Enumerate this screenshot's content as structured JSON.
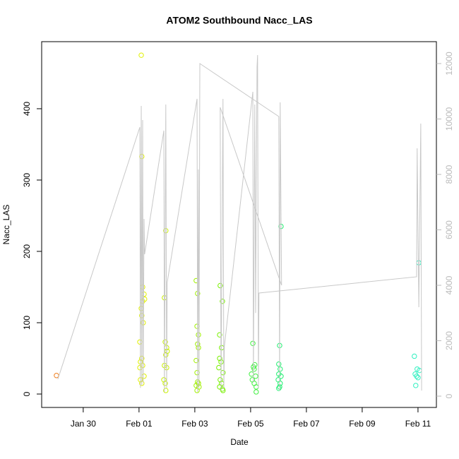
{
  "chart_data": {
    "type": "scatter",
    "title": "ATOM2 Southbound Nacc_LAS",
    "x_label": "Date",
    "y_label": "Nacc_LAS",
    "xlim": [
      28.51,
      42.66
    ],
    "xticks": [
      {
        "value": 30,
        "label": "Jan 30"
      },
      {
        "value": 32,
        "label": "Feb 01"
      },
      {
        "value": 34,
        "label": "Feb 03"
      },
      {
        "value": 36,
        "label": "Feb 05"
      },
      {
        "value": 38,
        "label": "Feb 07"
      },
      {
        "value": 40,
        "label": "Feb 09"
      },
      {
        "value": 42,
        "label": "Feb 11"
      }
    ],
    "ylim": [
      -18.8,
      494
    ],
    "yticks": [
      0,
      100,
      200,
      300,
      400
    ],
    "y2lim": [
      -408,
      12790
    ],
    "y2ticks": [
      0,
      2000,
      4000,
      6000,
      8000,
      10000,
      12000
    ],
    "y2_color": "#bbbbbb",
    "series": [
      {
        "color": "#f08020",
        "x": [
          29.04
        ],
        "values": [
          26
        ]
      },
      {
        "color": "#e0f000",
        "x": [
          32.08,
          32.1,
          32.13,
          32.18,
          32.13,
          32.2,
          32.08,
          32.1,
          32.15,
          32.03,
          32.1,
          32.05,
          32.13,
          32.03,
          32.18,
          32.05,
          32.1
        ],
        "values": [
          475,
          333,
          150,
          140,
          130,
          133,
          120,
          110,
          100,
          73,
          50,
          45,
          40,
          37,
          25,
          20,
          15
        ]
      },
      {
        "color": "#c8f000",
        "x": [
          32.96,
          32.91,
          32.94,
          32.99,
          33.01,
          32.96,
          32.91,
          32.99,
          32.89,
          32.94,
          32.96
        ],
        "values": [
          229,
          135,
          73,
          65,
          60,
          55,
          40,
          37,
          20,
          15,
          5
        ]
      },
      {
        "color": "#a0f000",
        "x": [
          34.05,
          34.1,
          34.08,
          34.13,
          34.1,
          34.13,
          34.05,
          34.08,
          34.1,
          34.13,
          34.05,
          34.15,
          34.08
        ],
        "values": [
          159,
          141,
          95,
          83,
          70,
          65,
          47,
          30,
          17,
          15,
          12,
          10,
          5
        ]
      },
      {
        "color": "#78f000",
        "x": [
          34.91,
          34.99,
          34.89,
          34.96,
          34.89,
          34.94,
          34.86,
          35.01,
          34.91,
          34.96,
          34.89,
          34.99,
          35.01
        ],
        "values": [
          152,
          130,
          83,
          65,
          50,
          45,
          37,
          30,
          20,
          15,
          10,
          7,
          5
        ]
      },
      {
        "color": "#40f040",
        "x": [
          36.08,
          36.15,
          36.1,
          36.13,
          36.03,
          36.18,
          36.06,
          36.13,
          36.2,
          36.2
        ],
        "values": [
          71,
          41,
          38,
          35,
          28,
          25,
          20,
          15,
          10,
          3
        ]
      },
      {
        "color": "#20f070",
        "x": [
          37.09,
          37.04,
          37.01,
          37.06,
          37.01,
          37.09,
          36.99,
          37.06,
          37.04,
          37.01
        ],
        "values": [
          235,
          68,
          42,
          35,
          28,
          25,
          20,
          15,
          10,
          8
        ]
      },
      {
        "color": "#30f0c0",
        "x": [
          42.03,
          41.87,
          41.97,
          42.05,
          41.9,
          41.95,
          42.0,
          41.92
        ],
        "values": [
          184,
          53,
          35,
          33,
          28,
          25,
          23,
          12
        ]
      },
      {
        "type": "line",
        "axis": "y2",
        "color": "#c8c8c8",
        "x": [
          29.09,
          32.03,
          32.05,
          32.08,
          32.1,
          32.13,
          32.15,
          32.18,
          32.2,
          32.89,
          32.91,
          32.96,
          32.99,
          33.01,
          34.08,
          34.1,
          34.13,
          34.15,
          34.18,
          37.01,
          37.04,
          37.06,
          37.09,
          37.11,
          34.91,
          34.94,
          35.01,
          35.04,
          35.06,
          36.08,
          36.1,
          36.15,
          36.18,
          36.23,
          36.25,
          36.28,
          36.3,
          41.95,
          41.97,
          42.03,
          42.1,
          42.13
        ],
        "values": [
          611,
          9707,
          300,
          10471,
          400,
          9962,
          500,
          6395,
          5121,
          9580,
          150,
          10522,
          300,
          4102,
          10726,
          150,
          8178,
          300,
          12000,
          10089,
          200,
          10599,
          6650,
          4000,
          10420,
          200,
          10726,
          300,
          1800,
          10981,
          500,
          10522,
          3000,
          11873,
          12306,
          300,
          3720,
          4306,
          8943,
          3210,
          9834,
          200
        ]
      }
    ]
  }
}
